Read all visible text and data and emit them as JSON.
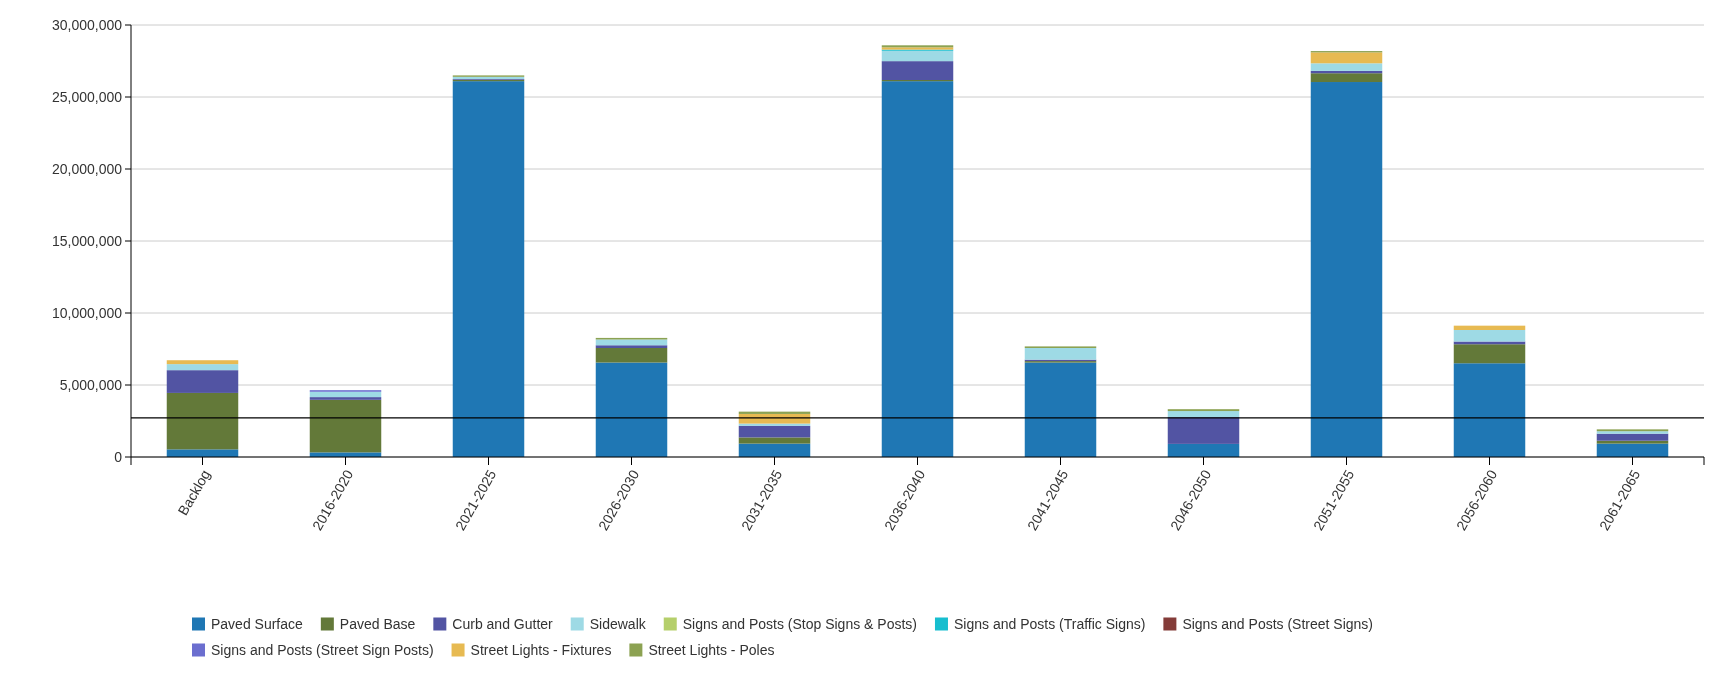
{
  "chart_data": {
    "type": "bar",
    "stacked": true,
    "categories": [
      "Backlog",
      "2016-2020",
      "2021-2025",
      "2026-2030",
      "2031-2035",
      "2036-2040",
      "2041-2045",
      "2046-2050",
      "2051-2055",
      "2056-2060",
      "2061-2065"
    ],
    "series": [
      {
        "name": "Paved Surface",
        "color": "#1f77b4",
        "values": [
          530000,
          320000,
          26100000,
          6560000,
          930000,
          26100000,
          6560000,
          910000,
          26040000,
          6510000,
          930000
        ]
      },
      {
        "name": "Paved Base",
        "color": "#637939",
        "values": [
          3920000,
          3650000,
          100000,
          1010000,
          430000,
          80000,
          100000,
          0,
          610000,
          1320000,
          200000
        ]
      },
      {
        "name": "Curb and Gutter",
        "color": "#5254a3",
        "values": [
          1580000,
          190000,
          50000,
          190000,
          800000,
          1310000,
          100000,
          1860000,
          160000,
          190000,
          490000
        ]
      },
      {
        "name": "Sidewalk",
        "color": "#9edae5",
        "values": [
          420000,
          370000,
          150000,
          400000,
          160000,
          720000,
          810000,
          420000,
          530000,
          800000,
          170000
        ]
      },
      {
        "name": "Signs and Posts (Stop Signs & Posts)",
        "color": "#b5cf6b",
        "values": [
          0,
          0,
          0,
          0,
          0,
          0,
          0,
          0,
          0,
          0,
          0
        ]
      },
      {
        "name": "Signs and Posts (Traffic Signs)",
        "color": "#17becf",
        "values": [
          0,
          0,
          0,
          0,
          0,
          80000,
          0,
          0,
          0,
          0,
          0
        ]
      },
      {
        "name": "Signs and Posts (Street Signs)",
        "color": "#843c39",
        "values": [
          0,
          0,
          0,
          0,
          0,
          0,
          0,
          0,
          0,
          0,
          0
        ]
      },
      {
        "name": "Signs and Posts (Street Sign Posts)",
        "color": "#6b6ecf",
        "values": [
          0,
          110000,
          0,
          0,
          0,
          0,
          0,
          0,
          0,
          0,
          0
        ]
      },
      {
        "name": "Street Lights - Fixtures",
        "color": "#e7ba52",
        "values": [
          270000,
          0,
          0,
          0,
          670000,
          160000,
          0,
          0,
          760000,
          300000,
          0
        ]
      },
      {
        "name": "Street Lights - Poles",
        "color": "#8ca252",
        "values": [
          0,
          0,
          100000,
          110000,
          160000,
          140000,
          110000,
          130000,
          90000,
          0,
          130000
        ]
      }
    ],
    "ylim": [
      0,
      30000000
    ],
    "yticks": [
      {
        "value": 0,
        "label": "0"
      },
      {
        "value": 5000000,
        "label": "5,000,000"
      },
      {
        "value": 10000000,
        "label": "10,000,000"
      },
      {
        "value": 15000000,
        "label": "15,000,000"
      },
      {
        "value": 20000000,
        "label": "20,000,000"
      },
      {
        "value": 25000000,
        "label": "25,000,000"
      },
      {
        "value": 30000000,
        "label": "30,000,000"
      }
    ],
    "ref_lines": [
      {
        "axis": "y",
        "value": 2720000,
        "color": "#000000"
      }
    ],
    "grid": "y",
    "legend": "bottom"
  }
}
